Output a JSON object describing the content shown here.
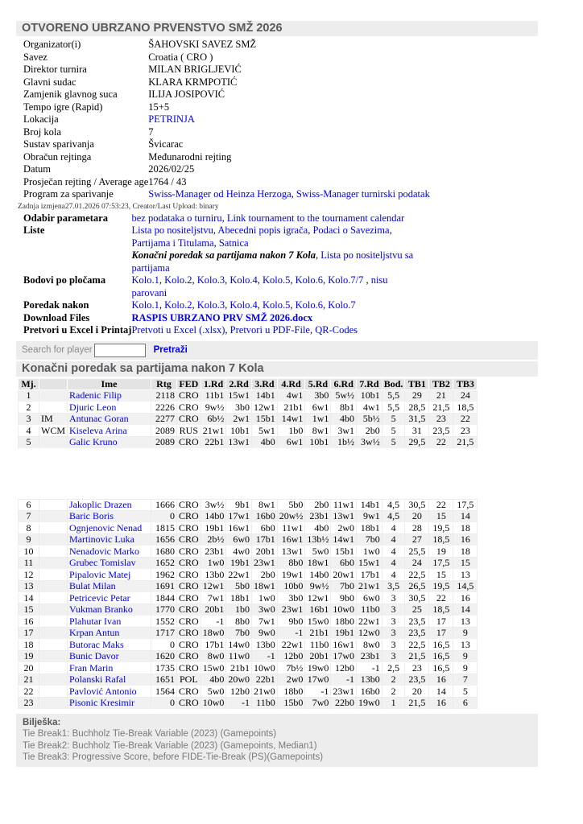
{
  "page_title": "OTVORENO UBRZANO PRVENSTVO SMŽ 2026",
  "colors": {
    "link": "#0000ee",
    "bar_background": "#ededed",
    "bar_text": "#58595b",
    "table_header_background": "#e3e3e3",
    "row_alt_background": "#f1f1f1",
    "notes_text": "#7a7a7a"
  },
  "info_rows_top": [
    {
      "label": "Organizator(i)",
      "bold": false,
      "parts": [
        {
          "t": "ŠAHOVSKI SAVEZ SMŽ"
        }
      ]
    },
    {
      "label": "Savez",
      "bold": false,
      "parts": [
        {
          "t": "Croatia ( CRO )"
        }
      ]
    },
    {
      "label": "Direktor turnira",
      "bold": false,
      "parts": [
        {
          "t": "MILAN BRIGLJEVIĆ"
        }
      ]
    },
    {
      "label": "Glavni sudac",
      "bold": false,
      "parts": [
        {
          "t": "KLARA KRMPOTIĆ"
        }
      ]
    },
    {
      "label": "Zamjenik glavnog suca",
      "bold": false,
      "parts": [
        {
          "t": "ILIJA JOSIPOVIĆ"
        }
      ]
    },
    {
      "label": "Tempo igre (Rapid)",
      "bold": false,
      "parts": [
        {
          "t": "15+5"
        }
      ]
    },
    {
      "label": "Lokacija",
      "bold": false,
      "parts": [
        {
          "t": "PETRINJA",
          "link": true
        }
      ]
    },
    {
      "label": "Broj kola",
      "bold": false,
      "parts": [
        {
          "t": "7"
        }
      ]
    },
    {
      "label": "Sustav sparivanja",
      "bold": false,
      "parts": [
        {
          "t": "Švicarac"
        }
      ]
    },
    {
      "label": "Obračun rejtinga",
      "bold": false,
      "parts": [
        {
          "t": "Međunarodni rejting"
        }
      ]
    },
    {
      "label": "Datum",
      "bold": false,
      "parts": [
        {
          "t": "2026/02/25"
        }
      ]
    },
    {
      "label": "Prosječan rejting / Average age",
      "bold": false,
      "parts": [
        {
          "t": "1764 / 43"
        }
      ]
    },
    {
      "label": "Program za sparivanje",
      "bold": false,
      "parts": [
        {
          "t": "Swiss-Manager od Heinza Herzoga",
          "link": true
        },
        {
          "t": ", "
        },
        {
          "t": "Swiss-Manager turnirski podatak",
          "link": true
        }
      ]
    }
  ],
  "meta_line": "Zadnja izmjena27.01.2026 07:53:23, Creator/Last Upload: binary",
  "info_rows_bottom": [
    {
      "label": "Odabir parametara",
      "bold": true,
      "parts": [
        {
          "t": "bez podataka o turniru",
          "link": true
        },
        {
          "t": ", "
        },
        {
          "t": "Link tournament to the tournament calendar",
          "link": true
        }
      ]
    },
    {
      "label": "Liste",
      "bold": true,
      "parts": [
        {
          "t": "Lista po nositeljstvu",
          "link": true
        },
        {
          "t": ", "
        },
        {
          "t": "Abecedni popis igrača",
          "link": true
        },
        {
          "t": ", "
        },
        {
          "t": "Podaci o Savezima",
          "link": true
        },
        {
          "t": ", "
        },
        {
          "t": "Partijama i Titulama",
          "link": true
        },
        {
          "t": ", "
        },
        {
          "t": "Satnica",
          "link": true
        }
      ]
    },
    {
      "label": "",
      "bold": false,
      "parts": [
        {
          "t": "Konačni poredak sa partijama nakon 7 Kola",
          "bolditalic": true
        },
        {
          "t": ", "
        },
        {
          "t": "Lista po nositeljstvu sa partijama",
          "link": true
        }
      ]
    },
    {
      "label": "Bodovi po pločama",
      "bold": true,
      "parts": [
        {
          "t": "Kolo.1",
          "link": true
        },
        {
          "t": ", "
        },
        {
          "t": "Kolo.2",
          "link": true
        },
        {
          "t": ", "
        },
        {
          "t": "Kolo.3",
          "link": true
        },
        {
          "t": ", "
        },
        {
          "t": "Kolo.4",
          "link": true
        },
        {
          "t": ", "
        },
        {
          "t": "Kolo.5",
          "link": true
        },
        {
          "t": ", "
        },
        {
          "t": "Kolo.6",
          "link": true
        },
        {
          "t": ", "
        },
        {
          "t": "Kolo.7/7",
          "link": true
        },
        {
          "t": " , "
        },
        {
          "t": "nisu parovani",
          "link": true
        }
      ]
    },
    {
      "label": "Poredak nakon",
      "bold": true,
      "parts": [
        {
          "t": "Kolo.1",
          "link": true
        },
        {
          "t": ", "
        },
        {
          "t": "Kolo.2",
          "link": true
        },
        {
          "t": ", "
        },
        {
          "t": "Kolo.3",
          "link": true
        },
        {
          "t": ", "
        },
        {
          "t": "Kolo.4",
          "link": true
        },
        {
          "t": ", "
        },
        {
          "t": "Kolo.5",
          "link": true
        },
        {
          "t": ", "
        },
        {
          "t": "Kolo.6",
          "link": true
        },
        {
          "t": ", "
        },
        {
          "t": "Kolo.7",
          "link": true
        }
      ]
    },
    {
      "label": "Download Files",
      "bold": true,
      "parts": [
        {
          "t": "RASPIS UBRZANO PRV SMŽ 2026.docx",
          "link": true,
          "boldlink": true
        }
      ]
    },
    {
      "label": "Pretvori u Excel i Printaj",
      "bold": true,
      "parts": [
        {
          "t": "Pretvoti u Excel (.xlsx)",
          "link": true
        },
        {
          "t": ", "
        },
        {
          "t": "Pretvori u PDF-File",
          "link": true
        },
        {
          "t": ", "
        },
        {
          "t": "QR-Codes",
          "link": true
        }
      ]
    }
  ],
  "search": {
    "label": "Search for player",
    "input_value": "",
    "button_label": "Pretraži"
  },
  "standings": {
    "heading": "Konačni poredak sa partijama nakon 7 Kola",
    "headers": [
      "Mj.",
      "",
      "Ime",
      "Rtg",
      "FED",
      "1.Rd",
      "2.Rd",
      "3.Rd",
      "4.Rd",
      "5.Rd",
      "6.Rd",
      "7.Rd",
      "Bod.",
      "TB1",
      "TB2",
      "TB3"
    ],
    "gap_after_row": 5,
    "rows": [
      {
        "mj": "1",
        "title": "",
        "name": "Radenic Filip",
        "rtg": "2118",
        "fed": "CRO",
        "rounds": [
          "11b1",
          "15w1",
          "14b1",
          "4w1",
          "3b0",
          "5w½",
          "10b1"
        ],
        "bod": "5,5",
        "tb1": "29",
        "tb2": "21",
        "tb3": "24"
      },
      {
        "mj": "2",
        "title": "",
        "name": "Djuric Leon",
        "rtg": "2226",
        "fed": "CRO",
        "rounds": [
          "9w½",
          "3b0",
          "12w1",
          "21b1",
          "6w1",
          "8b1",
          "4w1"
        ],
        "bod": "5,5",
        "tb1": "28,5",
        "tb2": "21,5",
        "tb3": "18,5"
      },
      {
        "mj": "3",
        "title": "IM",
        "name": "Antunac Goran",
        "rtg": "2277",
        "fed": "CRO",
        "rounds": [
          "6b½",
          "2w1",
          "15b1",
          "14w1",
          "1w1",
          "4b0",
          "5b½"
        ],
        "bod": "5",
        "tb1": "31,5",
        "tb2": "23",
        "tb3": "22"
      },
      {
        "mj": "4",
        "title": "WCM",
        "name": "Kiseleva Arina",
        "rtg": "2089",
        "fed": "RUS",
        "rounds": [
          "21w1",
          "10b1",
          "5w1",
          "1b0",
          "8w1",
          "3w1",
          "2b0"
        ],
        "bod": "5",
        "tb1": "31",
        "tb2": "23,5",
        "tb3": "23"
      },
      {
        "mj": "5",
        "title": "",
        "name": "Galic Kruno",
        "rtg": "2089",
        "fed": "CRO",
        "rounds": [
          "22b1",
          "13w1",
          "4b0",
          "6w1",
          "10b1",
          "1b½",
          "3w½"
        ],
        "bod": "5",
        "tb1": "29,5",
        "tb2": "22",
        "tb3": "21,5"
      },
      {
        "mj": "6",
        "title": "",
        "name": "Jakoplic Drazen",
        "rtg": "1666",
        "fed": "CRO",
        "rounds": [
          "3w½",
          "9b1",
          "8w1",
          "5b0",
          "2b0",
          "11w1",
          "14b1"
        ],
        "bod": "4,5",
        "tb1": "30,5",
        "tb2": "22",
        "tb3": "17,5"
      },
      {
        "mj": "7",
        "title": "",
        "name": "Baric Boris",
        "rtg": "0",
        "fed": "CRO",
        "rounds": [
          "14b0",
          "17w1",
          "16b0",
          "20w½",
          "23b1",
          "13w1",
          "9w1"
        ],
        "bod": "4,5",
        "tb1": "20",
        "tb2": "15",
        "tb3": "14"
      },
      {
        "mj": "8",
        "title": "",
        "name": "Ognjenovic Nenad",
        "rtg": "1815",
        "fed": "CRO",
        "rounds": [
          "19b1",
          "16w1",
          "6b0",
          "11w1",
          "4b0",
          "2w0",
          "18b1"
        ],
        "bod": "4",
        "tb1": "28",
        "tb2": "19,5",
        "tb3": "18"
      },
      {
        "mj": "9",
        "title": "",
        "name": "Martinovic Luka",
        "rtg": "1656",
        "fed": "CRO",
        "rounds": [
          "2b½",
          "6w0",
          "17b1",
          "16w1",
          "13b½",
          "14w1",
          "7b0"
        ],
        "bod": "4",
        "tb1": "27",
        "tb2": "18,5",
        "tb3": "16"
      },
      {
        "mj": "10",
        "title": "",
        "name": "Nenadovic Marko",
        "rtg": "1680",
        "fed": "CRO",
        "rounds": [
          "23b1",
          "4w0",
          "20b1",
          "13w1",
          "5w0",
          "15b1",
          "1w0"
        ],
        "bod": "4",
        "tb1": "25,5",
        "tb2": "19",
        "tb3": "18"
      },
      {
        "mj": "11",
        "title": "",
        "name": "Grubec Tomislav",
        "rtg": "1652",
        "fed": "CRO",
        "rounds": [
          "1w0",
          "19b1",
          "23w1",
          "8b0",
          "18w1",
          "6b0",
          "15w1"
        ],
        "bod": "4",
        "tb1": "24",
        "tb2": "17,5",
        "tb3": "15"
      },
      {
        "mj": "12",
        "title": "",
        "name": "Pipalovic Matej",
        "rtg": "1962",
        "fed": "CRO",
        "rounds": [
          "13b0",
          "22w1",
          "2b0",
          "19w1",
          "14b0",
          "20w1",
          "17b1"
        ],
        "bod": "4",
        "tb1": "22,5",
        "tb2": "15",
        "tb3": "13"
      },
      {
        "mj": "13",
        "title": "",
        "name": "Bulat Milan",
        "rtg": "1691",
        "fed": "CRO",
        "rounds": [
          "12w1",
          "5b0",
          "18w1",
          "10b0",
          "9w½",
          "7b0",
          "21w1"
        ],
        "bod": "3,5",
        "tb1": "26,5",
        "tb2": "19,5",
        "tb3": "14,5"
      },
      {
        "mj": "14",
        "title": "",
        "name": "Petricevic Petar",
        "rtg": "1844",
        "fed": "CRO",
        "rounds": [
          "7w1",
          "18b1",
          "1w0",
          "3b0",
          "12w1",
          "9b0",
          "6w0"
        ],
        "bod": "3",
        "tb1": "30,5",
        "tb2": "22",
        "tb3": "16"
      },
      {
        "mj": "15",
        "title": "",
        "name": "Vukman Branko",
        "rtg": "1770",
        "fed": "CRO",
        "rounds": [
          "20b1",
          "1b0",
          "3w0",
          "23w1",
          "16b1",
          "10w0",
          "11b0"
        ],
        "bod": "3",
        "tb1": "25",
        "tb2": "18,5",
        "tb3": "14"
      },
      {
        "mj": "16",
        "title": "",
        "name": "Plahutar Ivan",
        "rtg": "1552",
        "fed": "CRO",
        "rounds": [
          "-1",
          "8b0",
          "7w1",
          "9b0",
          "15w0",
          "18b0",
          "22w1"
        ],
        "bod": "3",
        "tb1": "23,5",
        "tb2": "17",
        "tb3": "13"
      },
      {
        "mj": "17",
        "title": "",
        "name": "Krpan Antun",
        "rtg": "1717",
        "fed": "CRO",
        "rounds": [
          "18w0",
          "7b0",
          "9w0",
          "-1",
          "21b1",
          "19b1",
          "12w0"
        ],
        "bod": "3",
        "tb1": "23,5",
        "tb2": "17",
        "tb3": "9"
      },
      {
        "mj": "18",
        "title": "",
        "name": "Butorac Maks",
        "rtg": "0",
        "fed": "CRO",
        "rounds": [
          "17b1",
          "14w0",
          "13b0",
          "22w1",
          "11b0",
          "16w1",
          "8w0"
        ],
        "bod": "3",
        "tb1": "22,5",
        "tb2": "16,5",
        "tb3": "13"
      },
      {
        "mj": "19",
        "title": "",
        "name": "Bunic Davor",
        "rtg": "1620",
        "fed": "CRO",
        "rounds": [
          "8w0",
          "11w0",
          "-1",
          "12b0",
          "20b1",
          "17w0",
          "23b1"
        ],
        "bod": "3",
        "tb1": "21,5",
        "tb2": "16,5",
        "tb3": "9"
      },
      {
        "mj": "20",
        "title": "",
        "name": "Fran Marin",
        "rtg": "1735",
        "fed": "CRO",
        "rounds": [
          "15w0",
          "21b1",
          "10w0",
          "7b½",
          "19w0",
          "12b0",
          "-1"
        ],
        "bod": "2,5",
        "tb1": "23",
        "tb2": "16,5",
        "tb3": "9"
      },
      {
        "mj": "21",
        "title": "",
        "name": "Polanski Rafal",
        "rtg": "1651",
        "fed": "POL",
        "rounds": [
          "4b0",
          "20w0",
          "22b1",
          "2w0",
          "17w0",
          "-1",
          "13b0"
        ],
        "bod": "2",
        "tb1": "23,5",
        "tb2": "16",
        "tb3": "7"
      },
      {
        "mj": "22",
        "title": "",
        "name": "Pavlović Antonio",
        "rtg": "1564",
        "fed": "CRO",
        "rounds": [
          "5w0",
          "12b0",
          "21w0",
          "18b0",
          "-1",
          "23w1",
          "16b0"
        ],
        "bod": "2",
        "tb1": "20",
        "tb2": "14",
        "tb3": "5"
      },
      {
        "mj": "23",
        "title": "",
        "name": "Pisonic Kresimir",
        "rtg": "0",
        "fed": "CRO",
        "rounds": [
          "10w0",
          "-1",
          "11b0",
          "15b0",
          "7w0",
          "22b0",
          "19w0"
        ],
        "bod": "1",
        "tb1": "21,5",
        "tb2": "16",
        "tb3": "6"
      }
    ]
  },
  "notes": {
    "heading": "Bilješka:",
    "lines": [
      "Tie Break1: Buchholz Tie-Break Variable (2023) (Gamepoints)",
      "Tie Break2: Buchholz Tie-Break Variable (2023) (Gamepoints, Median1)",
      "Tie Break3: Progressive Score, before FIDE-Tie-Break (PS)(Gamepoints)"
    ]
  }
}
